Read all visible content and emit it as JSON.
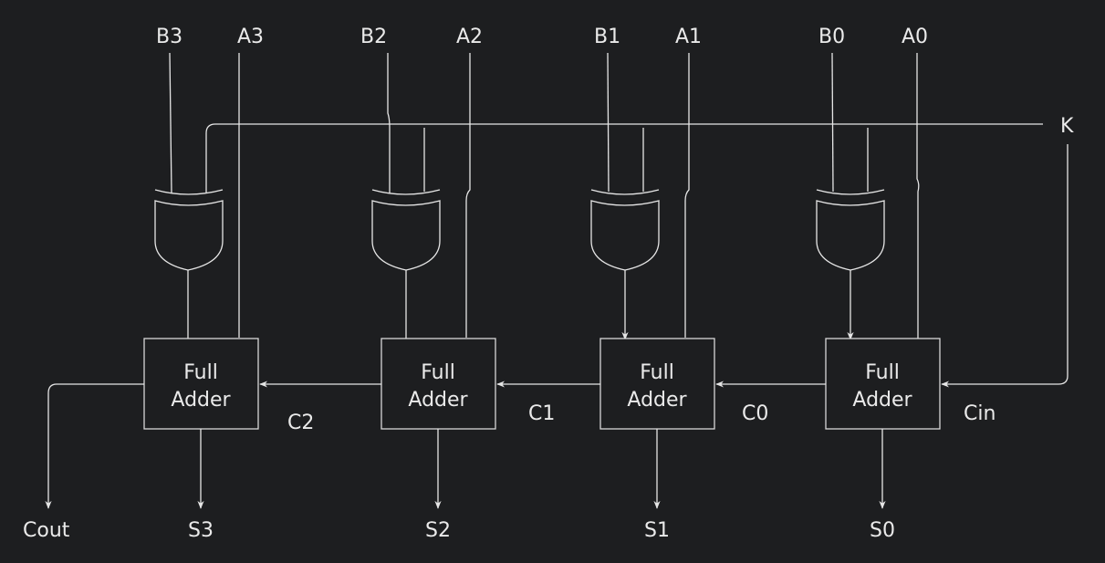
{
  "diagram": {
    "inputs": {
      "b3": "B3",
      "a3": "A3",
      "b2": "B2",
      "a2": "A2",
      "b1": "B1",
      "a1": "A1",
      "b0": "B0",
      "a0": "A0"
    },
    "control": "K",
    "carry_in": "Cin",
    "carries": {
      "c0": "C0",
      "c1": "C1",
      "c2": "C2"
    },
    "carry_out": "Cout",
    "sums": {
      "s3": "S3",
      "s2": "S2",
      "s1": "S1",
      "s0": "S0"
    },
    "adder_line1": "Full",
    "adder_line2": "Adder",
    "colors": {
      "background": "#1d1e20",
      "line": "#e6e6e6"
    }
  }
}
